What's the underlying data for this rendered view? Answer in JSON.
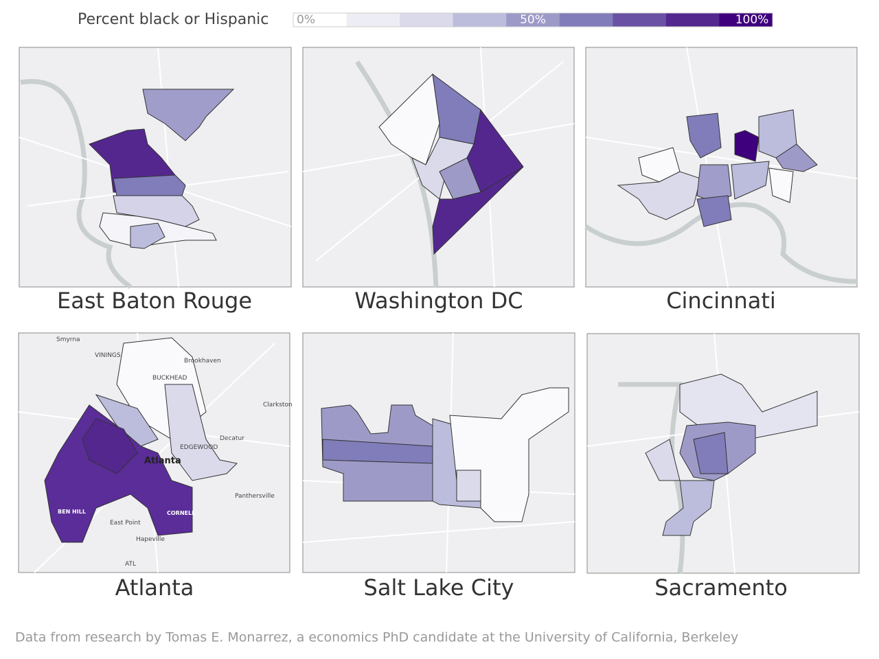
{
  "legend": {
    "title": "Percent black or Hispanic",
    "labels": [
      "0%",
      "50%",
      "100%"
    ],
    "colors": [
      "#ffffff",
      "#ededf5",
      "#dadaeb",
      "#bcbddc",
      "#9e9ac8",
      "#807dba",
      "#6a51a3",
      "#54278f",
      "#3f007d"
    ]
  },
  "maps": [
    {
      "title": "East Baton Rouge"
    },
    {
      "title": "Washington DC"
    },
    {
      "title": "Cincinnati"
    },
    {
      "title": "Atlanta",
      "labels": [
        "Smyrna",
        "VININGS",
        "Brookhaven",
        "BUCKHEAD",
        "Clarkston",
        "Decatur",
        "Atlanta",
        "EDGEWOOD",
        "Panthersville",
        "BEN HILL",
        "East Point",
        "CORNELL",
        "Hapeville",
        "ATL"
      ]
    },
    {
      "title": "Salt Lake City"
    },
    {
      "title": "Sacramento"
    }
  ],
  "footer": "Data from research by Tomas E. Monarrez, a economics PhD candidate at the University of California, Berkeley"
}
